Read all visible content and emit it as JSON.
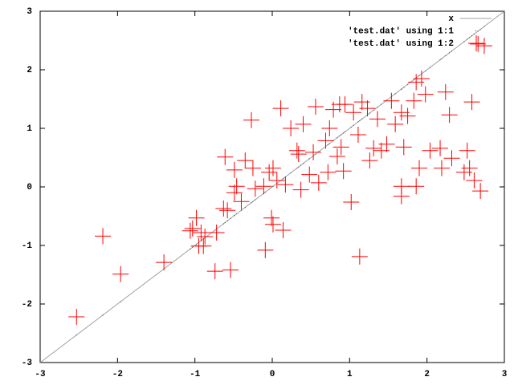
{
  "chart_data": {
    "type": "scatter",
    "x": [
      -2.53,
      -2.19,
      -1.96,
      -1.4,
      -1.03,
      -0.98,
      -1.06,
      -0.92,
      -0.87,
      -0.95,
      -0.89,
      -0.74,
      -0.54,
      -0.72,
      -0.63,
      -0.58,
      -0.61,
      -0.49,
      -0.46,
      -0.49,
      -0.4,
      -0.35,
      -0.27,
      -0.25,
      -0.22,
      -0.11,
      -0.04,
      0.01,
      -0.01,
      -0.09,
      0.01,
      0.14,
      0.06,
      0.11,
      0.24,
      0.17,
      0.32,
      0.34,
      0.4,
      0.48,
      0.37,
      0.53,
      0.56,
      0.6,
      0.69,
      0.74,
      0.72,
      0.79,
      0.84,
      0.89,
      0.94,
      0.92,
      1.02,
      1.05,
      1.11,
      1.13,
      1.16,
      1.23,
      1.26,
      1.31,
      1.36,
      1.41,
      1.48,
      1.54,
      1.59,
      1.67,
      1.67,
      1.67,
      1.7,
      1.75,
      1.83,
      1.86,
      1.9,
      1.86,
      1.98,
      2.04,
      2.17,
      2.19,
      2.24,
      2.29,
      2.32,
      2.52,
      2.48,
      2.58,
      2.55,
      2.61,
      2.66,
      2.74,
      2.69,
      1.93,
      0.87
    ],
    "series": [
      {
        "name": "x",
        "style": "line",
        "color": "#a0a0a0",
        "x": [
          -3,
          3
        ],
        "values": [
          -3,
          3
        ]
      },
      {
        "name": "'test.dat' using 1:1",
        "style": "dots",
        "color": "#404040",
        "values": [
          -2.53,
          -2.19,
          -1.96,
          -1.4,
          -1.03,
          -0.98,
          -1.06,
          -0.92,
          -0.87,
          -0.95,
          -0.89,
          -0.74,
          -0.54,
          -0.72,
          -0.63,
          -0.58,
          -0.61,
          -0.49,
          -0.46,
          -0.49,
          -0.4,
          -0.35,
          -0.27,
          -0.25,
          -0.22,
          -0.11,
          -0.04,
          0.01,
          -0.01,
          -0.09,
          0.01,
          0.14,
          0.06,
          0.11,
          0.24,
          0.17,
          0.32,
          0.34,
          0.4,
          0.48,
          0.37,
          0.53,
          0.56,
          0.6,
          0.69,
          0.74,
          0.72,
          0.79,
          0.84,
          0.89,
          0.94,
          0.92,
          1.02,
          1.05,
          1.11,
          1.13,
          1.16,
          1.23,
          1.26,
          1.31,
          1.36,
          1.41,
          1.48,
          1.54,
          1.59,
          1.67,
          1.67,
          1.67,
          1.7,
          1.75,
          1.83,
          1.86,
          1.9,
          1.86,
          1.98,
          2.04,
          2.17,
          2.19,
          2.24,
          2.29,
          2.32,
          2.52,
          2.48,
          2.58,
          2.55,
          2.61,
          2.66,
          2.74,
          2.69,
          1.93,
          0.87
        ]
      },
      {
        "name": "'test.dat' using 1:2",
        "style": "crosses",
        "color": "#ff0000",
        "values": [
          -2.22,
          -0.84,
          -1.49,
          -1.29,
          -0.71,
          -0.53,
          -0.75,
          -0.78,
          -0.85,
          -1.01,
          -1.01,
          -1.44,
          -1.42,
          -0.78,
          -0.37,
          -0.4,
          0.51,
          -0.1,
          0.01,
          0.29,
          -0.25,
          0.45,
          1.14,
          0.32,
          -0.03,
          0.01,
          0.25,
          0.32,
          -0.53,
          -1.08,
          -0.64,
          -0.74,
          0.11,
          1.34,
          1.0,
          0.04,
          0.62,
          0.56,
          1.07,
          0.21,
          -0.05,
          0.59,
          1.37,
          0.07,
          0.79,
          1.0,
          0.25,
          1.32,
          0.52,
          0.68,
          1.41,
          0.27,
          -0.26,
          1.27,
          0.89,
          -1.19,
          1.45,
          1.34,
          0.45,
          0.66,
          1.16,
          0.62,
          0.73,
          1.47,
          1.07,
          1.27,
          0.01,
          -0.16,
          0.68,
          1.21,
          1.47,
          1.79,
          0.32,
          0.01,
          1.58,
          0.62,
          0.66,
          0.32,
          1.62,
          1.23,
          0.49,
          0.62,
          0.25,
          1.45,
          0.32,
          0.11,
          2.44,
          2.41,
          -0.07,
          1.85,
          1.41
        ]
      }
    ],
    "xlim": [
      -3,
      3
    ],
    "ylim": [
      -3,
      3
    ],
    "xticks": [
      -3,
      -2,
      -1,
      0,
      1,
      2,
      3
    ],
    "yticks": [
      -3,
      -2,
      -1,
      0,
      1,
      2,
      3
    ],
    "legend": "top-right",
    "grid": false
  }
}
